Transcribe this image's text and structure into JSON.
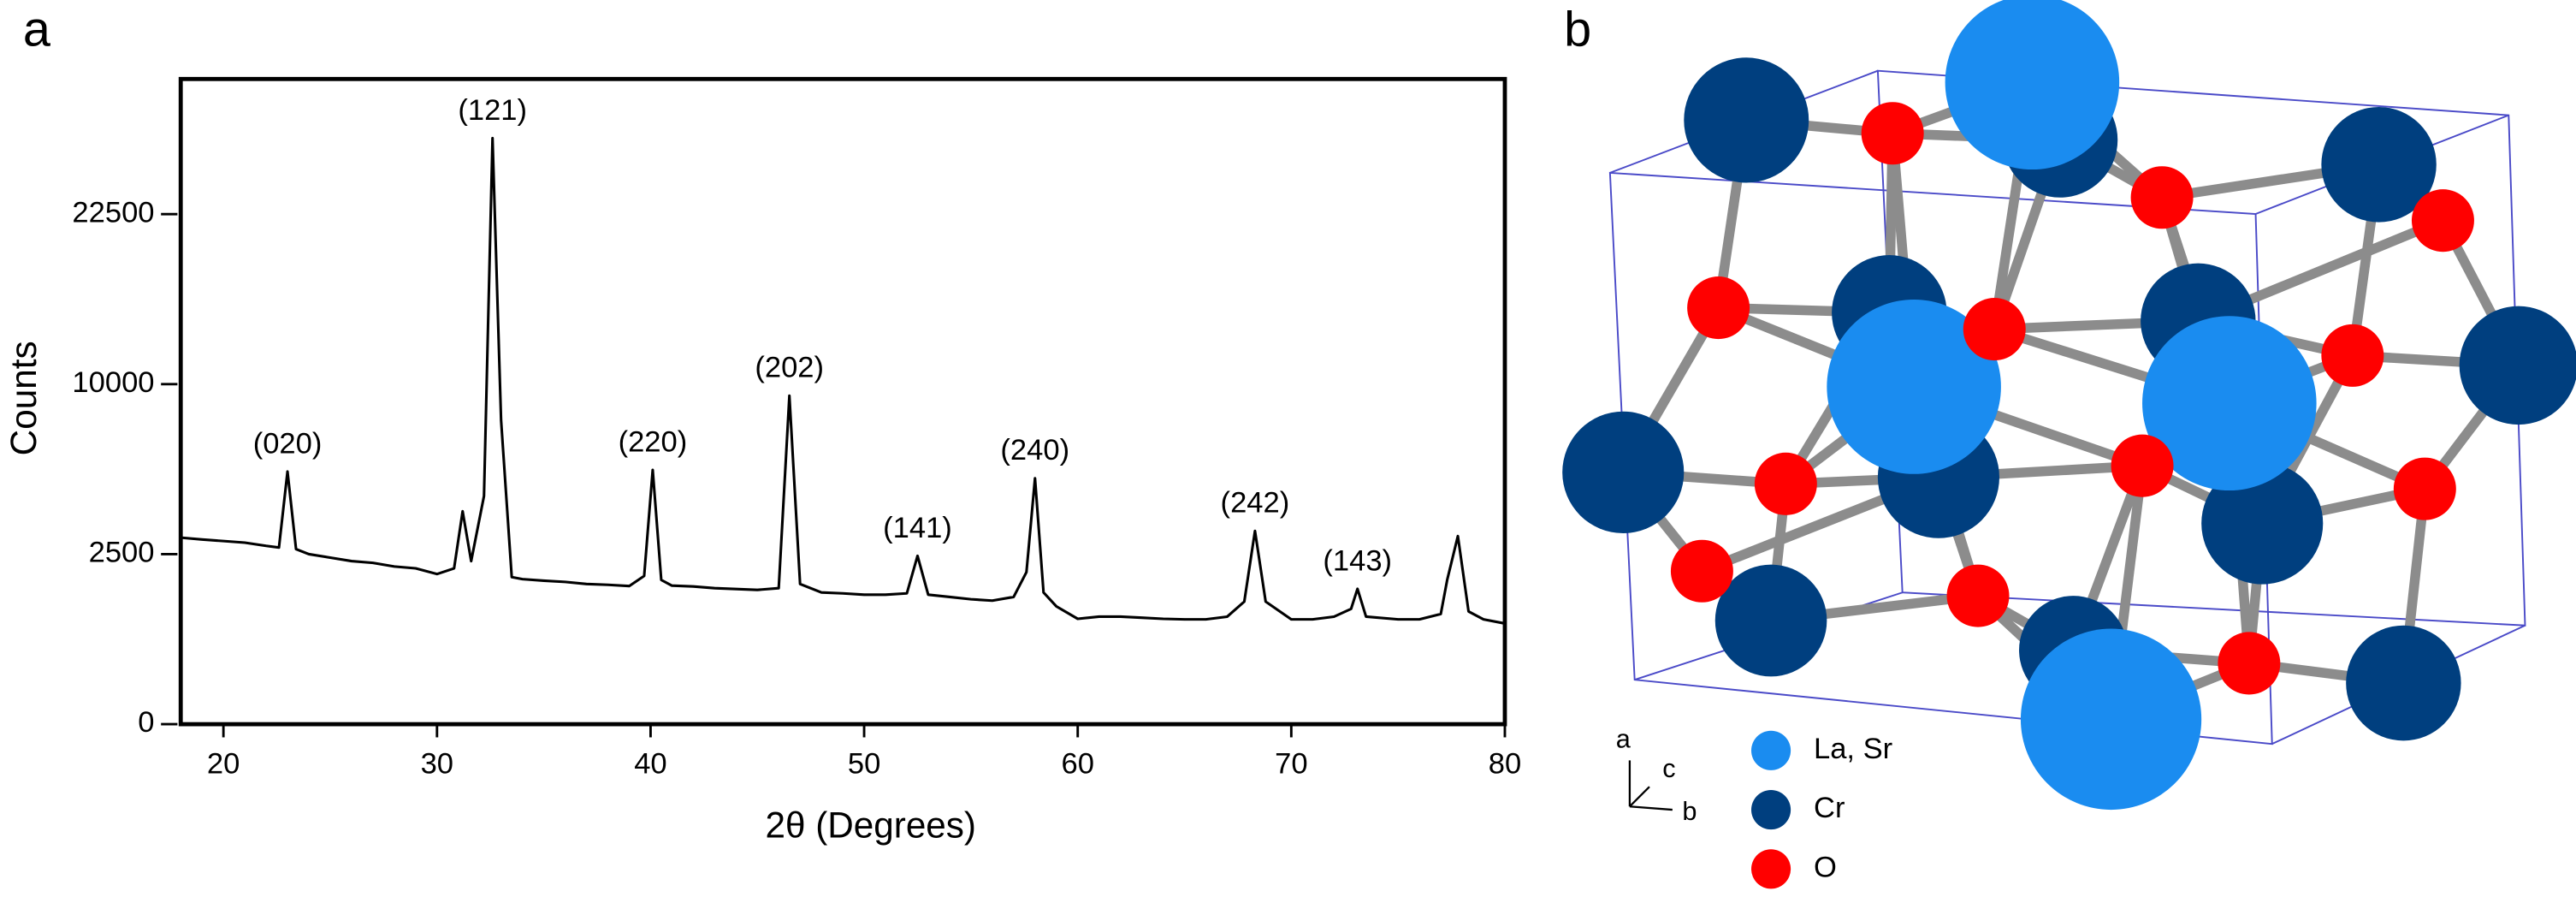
{
  "panel_labels": [
    "a",
    "b"
  ],
  "chart_data": {
    "type": "line",
    "xlabel": "2θ (Degrees)",
    "ylabel": "Counts",
    "xlim": [
      18,
      80
    ],
    "xticks": [
      20,
      30,
      40,
      50,
      60,
      70,
      80
    ],
    "ylim": [
      0,
      36000
    ],
    "yscale": "sqrt",
    "yticks": [
      0,
      2500,
      10000,
      22500
    ],
    "series": [
      {
        "color": "#000000",
        "x": [
          18,
          19,
          20,
          21,
          22,
          22.6,
          23,
          23.4,
          24,
          25,
          26,
          27,
          28,
          29,
          30,
          30.8,
          31.2,
          31.6,
          32.2,
          32.6,
          33.0,
          33.5,
          34,
          35,
          36,
          37,
          38,
          39,
          39.7,
          40.1,
          40.5,
          41,
          42,
          43,
          44,
          45,
          46,
          46.5,
          47,
          48,
          49,
          50,
          51,
          52,
          52.5,
          53,
          54,
          55,
          56,
          57,
          57.6,
          58,
          58.4,
          59,
          60,
          61,
          62,
          63,
          64,
          65,
          66,
          67,
          67.8,
          68.3,
          68.8,
          70,
          71,
          72,
          72.8,
          73.1,
          73.5,
          75,
          76,
          77,
          77.3,
          77.8,
          78.3,
          79,
          80
        ],
        "values": [
          3010,
          2950,
          2900,
          2850,
          2750,
          2700,
          5520,
          2650,
          2500,
          2400,
          2300,
          2250,
          2150,
          2100,
          1950,
          2100,
          3920,
          2300,
          4500,
          29700,
          8000,
          1870,
          1820,
          1780,
          1750,
          1700,
          1680,
          1650,
          1900,
          5590,
          1800,
          1660,
          1640,
          1600,
          1580,
          1560,
          1600,
          9330,
          1700,
          1500,
          1480,
          1450,
          1450,
          1480,
          2450,
          1450,
          1400,
          1350,
          1320,
          1400,
          2000,
          5230,
          1500,
          1200,
          960,
          1000,
          1000,
          980,
          960,
          950,
          950,
          1000,
          1300,
          3230,
          1300,
          950,
          950,
          1000,
          1150,
          1585,
          1000,
          950,
          950,
          1050,
          1800,
          3060,
          1100,
          950,
          877
        ]
      }
    ],
    "annotations": [
      {
        "text": "(020)",
        "x": 23
      },
      {
        "text": "(121)",
        "x": 32.6
      },
      {
        "text": "(220)",
        "x": 40.1
      },
      {
        "text": "(202)",
        "x": 46.5
      },
      {
        "text": "(141)",
        "x": 52.5
      },
      {
        "text": "(240)",
        "x": 58
      },
      {
        "text": "(242)",
        "x": 68.3
      },
      {
        "text": "(143)",
        "x": 73.1
      }
    ]
  },
  "structure": {
    "axis_labels": [
      "a",
      "c",
      "b"
    ],
    "legend": [
      {
        "label": "La, Sr",
        "color": "#1a8cf0"
      },
      {
        "label": "Cr",
        "color": "#003f7f"
      },
      {
        "label": "O",
        "color": "#ff0000"
      }
    ]
  }
}
